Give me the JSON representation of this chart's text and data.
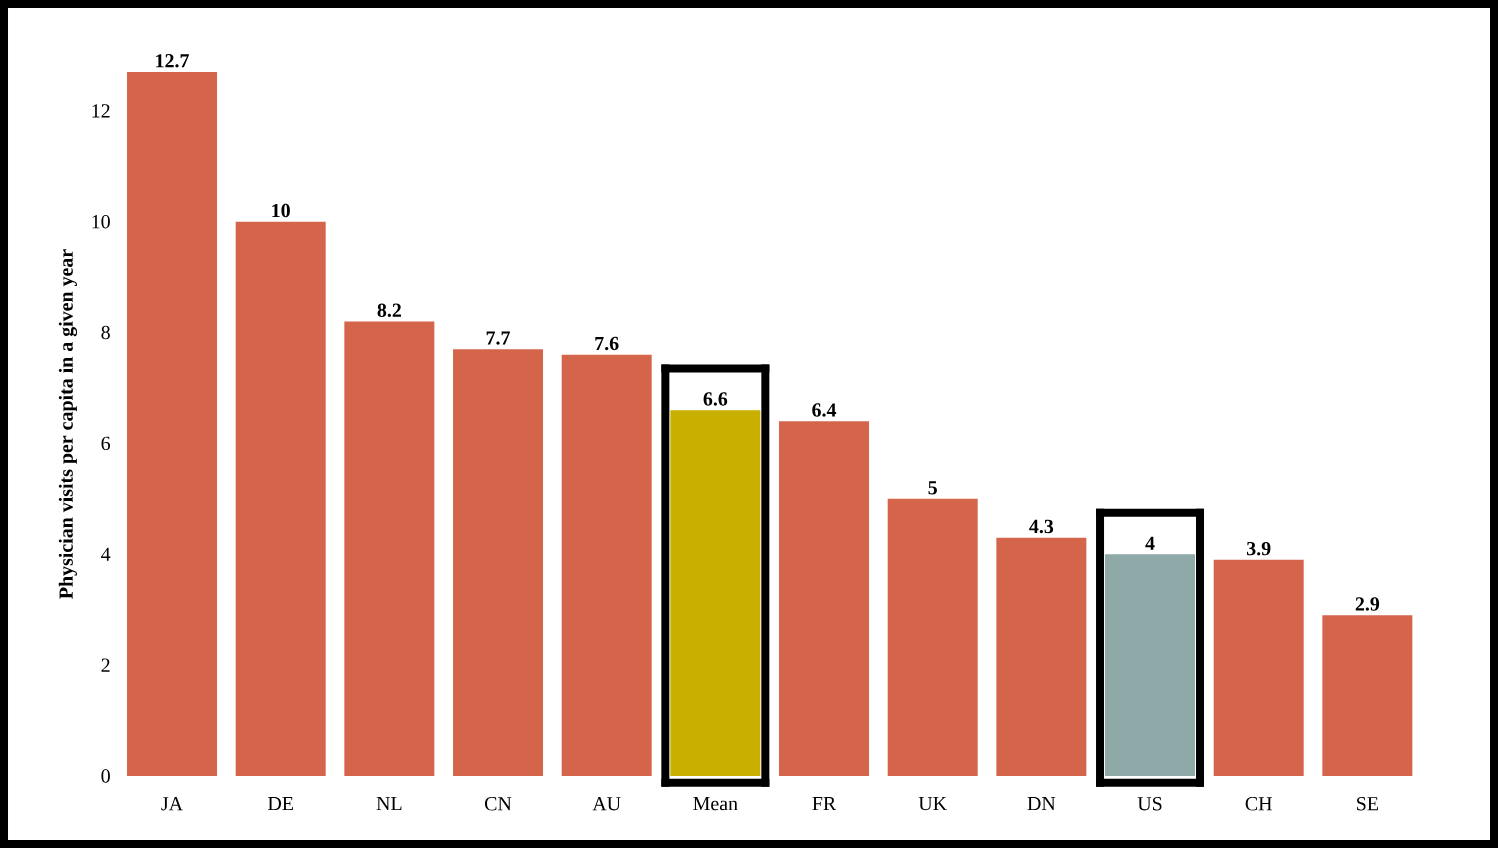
{
  "chart_data": {
    "type": "bar",
    "ylabel": "Physician visits per capita in a given year",
    "categories": [
      "JA",
      "DE",
      "NL",
      "CN",
      "AU",
      "Mean",
      "FR",
      "UK",
      "DN",
      "US",
      "CH",
      "SE"
    ],
    "values": [
      12.7,
      10,
      8.2,
      7.7,
      7.6,
      6.6,
      6.4,
      5,
      4.3,
      4,
      3.9,
      2.9
    ],
    "colors": [
      "#d4654b",
      "#d4654b",
      "#d4654b",
      "#d4654b",
      "#d4654b",
      "#c9b000",
      "#d4654b",
      "#d4654b",
      "#d4654b",
      "#8fa8a8",
      "#d4654b",
      "#d4654b"
    ],
    "ylim": [
      0,
      12.7
    ],
    "yticks": [
      0,
      2,
      4,
      6,
      8,
      10,
      12
    ],
    "data_labels": true,
    "grid": false
  }
}
